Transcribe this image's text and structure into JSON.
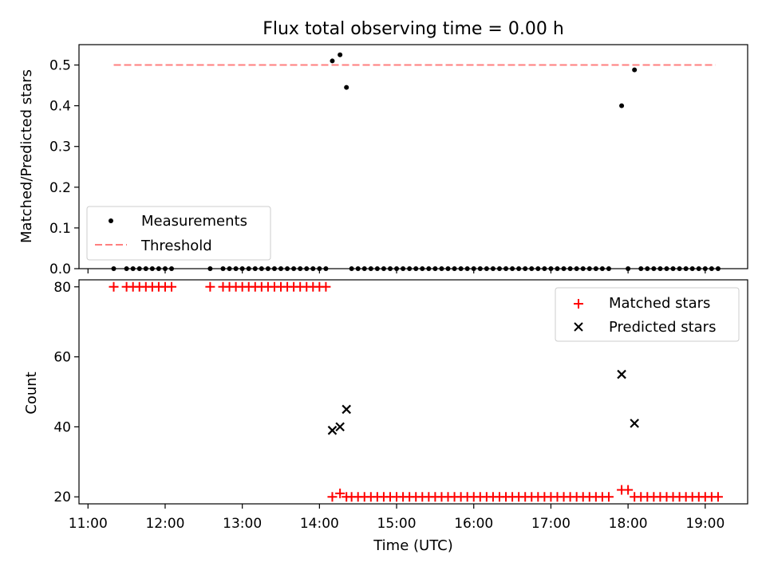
{
  "chart_data": [
    {
      "type": "scatter",
      "title": "Flux total observing time = 0.00 h",
      "xlabel": "",
      "ylabel": "Matched/Predicted stars",
      "x_range": [
        "10:53",
        "19:33"
      ],
      "ylim": [
        0,
        0.55
      ],
      "yticks": [
        "0.0",
        "0.1",
        "0.2",
        "0.3",
        "0.4",
        "0.5"
      ],
      "legend_location": "lower-left",
      "threshold": {
        "name": "Threshold",
        "value": 0.5,
        "x_start": "11:20",
        "x_end": "19:08",
        "color": "#ff7f7f",
        "style": "dashed"
      },
      "series": [
        {
          "name": "Measurements",
          "color": "#000000",
          "marker": "dot",
          "points": [
            [
              "11:20",
              0
            ],
            [
              "11:30",
              0
            ],
            [
              "11:35",
              0
            ],
            [
              "11:40",
              0
            ],
            [
              "11:45",
              0
            ],
            [
              "11:50",
              0
            ],
            [
              "11:55",
              0
            ],
            [
              "12:00",
              0
            ],
            [
              "12:05",
              0
            ],
            [
              "12:35",
              0
            ],
            [
              "12:45",
              0
            ],
            [
              "12:50",
              0
            ],
            [
              "12:55",
              0
            ],
            [
              "13:00",
              0
            ],
            [
              "13:05",
              0
            ],
            [
              "13:10",
              0
            ],
            [
              "13:15",
              0
            ],
            [
              "13:20",
              0
            ],
            [
              "13:25",
              0
            ],
            [
              "13:30",
              0
            ],
            [
              "13:35",
              0
            ],
            [
              "13:40",
              0
            ],
            [
              "13:45",
              0
            ],
            [
              "13:50",
              0
            ],
            [
              "13:55",
              0
            ],
            [
              "14:00",
              0
            ],
            [
              "14:05",
              0
            ],
            [
              "14:10",
              0.51
            ],
            [
              "14:16",
              0.525
            ],
            [
              "14:21",
              0.445
            ],
            [
              "14:25",
              0
            ],
            [
              "14:30",
              0
            ],
            [
              "14:35",
              0
            ],
            [
              "14:40",
              0
            ],
            [
              "14:45",
              0
            ],
            [
              "14:50",
              0
            ],
            [
              "14:55",
              0
            ],
            [
              "15:00",
              0
            ],
            [
              "15:05",
              0
            ],
            [
              "15:10",
              0
            ],
            [
              "15:15",
              0
            ],
            [
              "15:20",
              0
            ],
            [
              "15:25",
              0
            ],
            [
              "15:30",
              0
            ],
            [
              "15:35",
              0
            ],
            [
              "15:40",
              0
            ],
            [
              "15:45",
              0
            ],
            [
              "15:50",
              0
            ],
            [
              "15:55",
              0
            ],
            [
              "16:00",
              0
            ],
            [
              "16:05",
              0
            ],
            [
              "16:10",
              0
            ],
            [
              "16:15",
              0
            ],
            [
              "16:20",
              0
            ],
            [
              "16:25",
              0
            ],
            [
              "16:30",
              0
            ],
            [
              "16:35",
              0
            ],
            [
              "16:40",
              0
            ],
            [
              "16:45",
              0
            ],
            [
              "16:50",
              0
            ],
            [
              "16:55",
              0
            ],
            [
              "17:00",
              0
            ],
            [
              "17:05",
              0
            ],
            [
              "17:10",
              0
            ],
            [
              "17:15",
              0
            ],
            [
              "17:20",
              0
            ],
            [
              "17:25",
              0
            ],
            [
              "17:30",
              0
            ],
            [
              "17:35",
              0
            ],
            [
              "17:40",
              0
            ],
            [
              "17:45",
              0
            ],
            [
              "17:55",
              0.4
            ],
            [
              "18:00",
              0
            ],
            [
              "18:05",
              0.488
            ],
            [
              "18:10",
              0
            ],
            [
              "18:15",
              0
            ],
            [
              "18:20",
              0
            ],
            [
              "18:25",
              0
            ],
            [
              "18:30",
              0
            ],
            [
              "18:35",
              0
            ],
            [
              "18:40",
              0
            ],
            [
              "18:45",
              0
            ],
            [
              "18:50",
              0
            ],
            [
              "18:55",
              0
            ],
            [
              "19:00",
              0
            ],
            [
              "19:05",
              0
            ],
            [
              "19:10",
              0
            ]
          ]
        }
      ]
    },
    {
      "type": "scatter",
      "title": "",
      "xlabel": "Time (UTC)",
      "ylabel": "Count",
      "x_range": [
        "10:53",
        "19:33"
      ],
      "ylim": [
        18,
        82
      ],
      "yticks": [
        "20",
        "40",
        "60",
        "80"
      ],
      "xticks": [
        "11:00",
        "12:00",
        "13:00",
        "14:00",
        "15:00",
        "16:00",
        "17:00",
        "18:00",
        "19:00"
      ],
      "legend_location": "upper-right",
      "series": [
        {
          "name": "Matched stars",
          "color": "#ff0000",
          "marker": "plus",
          "points": [
            [
              "11:20",
              80
            ],
            [
              "11:30",
              80
            ],
            [
              "11:35",
              80
            ],
            [
              "11:40",
              80
            ],
            [
              "11:45",
              80
            ],
            [
              "11:50",
              80
            ],
            [
              "11:55",
              80
            ],
            [
              "12:00",
              80
            ],
            [
              "12:05",
              80
            ],
            [
              "12:35",
              80
            ],
            [
              "12:45",
              80
            ],
            [
              "12:50",
              80
            ],
            [
              "12:55",
              80
            ],
            [
              "13:00",
              80
            ],
            [
              "13:05",
              80
            ],
            [
              "13:10",
              80
            ],
            [
              "13:15",
              80
            ],
            [
              "13:20",
              80
            ],
            [
              "13:25",
              80
            ],
            [
              "13:30",
              80
            ],
            [
              "13:35",
              80
            ],
            [
              "13:40",
              80
            ],
            [
              "13:45",
              80
            ],
            [
              "13:50",
              80
            ],
            [
              "13:55",
              80
            ],
            [
              "14:00",
              80
            ],
            [
              "14:05",
              80
            ],
            [
              "14:10",
              20
            ],
            [
              "14:16",
              21
            ],
            [
              "14:21",
              20
            ],
            [
              "14:25",
              20
            ],
            [
              "14:30",
              20
            ],
            [
              "14:35",
              20
            ],
            [
              "14:40",
              20
            ],
            [
              "14:45",
              20
            ],
            [
              "14:50",
              20
            ],
            [
              "14:55",
              20
            ],
            [
              "15:00",
              20
            ],
            [
              "15:05",
              20
            ],
            [
              "15:10",
              20
            ],
            [
              "15:15",
              20
            ],
            [
              "15:20",
              20
            ],
            [
              "15:25",
              20
            ],
            [
              "15:30",
              20
            ],
            [
              "15:35",
              20
            ],
            [
              "15:40",
              20
            ],
            [
              "15:45",
              20
            ],
            [
              "15:50",
              20
            ],
            [
              "15:55",
              20
            ],
            [
              "16:00",
              20
            ],
            [
              "16:05",
              20
            ],
            [
              "16:10",
              20
            ],
            [
              "16:15",
              20
            ],
            [
              "16:20",
              20
            ],
            [
              "16:25",
              20
            ],
            [
              "16:30",
              20
            ],
            [
              "16:35",
              20
            ],
            [
              "16:40",
              20
            ],
            [
              "16:45",
              20
            ],
            [
              "16:50",
              20
            ],
            [
              "16:55",
              20
            ],
            [
              "17:00",
              20
            ],
            [
              "17:05",
              20
            ],
            [
              "17:10",
              20
            ],
            [
              "17:15",
              20
            ],
            [
              "17:20",
              20
            ],
            [
              "17:25",
              20
            ],
            [
              "17:30",
              20
            ],
            [
              "17:35",
              20
            ],
            [
              "17:40",
              20
            ],
            [
              "17:45",
              20
            ],
            [
              "17:55",
              22
            ],
            [
              "18:00",
              22
            ],
            [
              "18:05",
              20
            ],
            [
              "18:10",
              20
            ],
            [
              "18:15",
              20
            ],
            [
              "18:20",
              20
            ],
            [
              "18:25",
              20
            ],
            [
              "18:30",
              20
            ],
            [
              "18:35",
              20
            ],
            [
              "18:40",
              20
            ],
            [
              "18:45",
              20
            ],
            [
              "18:50",
              20
            ],
            [
              "18:55",
              20
            ],
            [
              "19:00",
              20
            ],
            [
              "19:05",
              20
            ],
            [
              "19:10",
              20
            ]
          ]
        },
        {
          "name": "Predicted stars",
          "color": "#000000",
          "marker": "x",
          "points": [
            [
              "14:10",
              39
            ],
            [
              "14:16",
              40
            ],
            [
              "14:21",
              45
            ],
            [
              "17:55",
              55
            ],
            [
              "18:05",
              41
            ]
          ]
        }
      ]
    }
  ]
}
